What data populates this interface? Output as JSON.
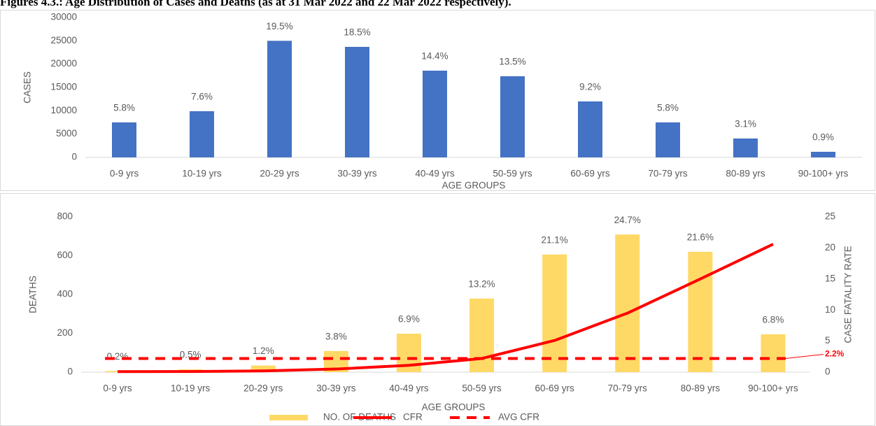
{
  "title": "Figures 4.3.: Age Distribution of Cases and Deaths (as at 31 Mar 2022 and 22 Mar 2022 respectively).",
  "chart_data": [
    {
      "type": "bar",
      "categories": [
        "0-9 yrs",
        "10-19 yrs",
        "20-29 yrs",
        "30-39 yrs",
        "40-49 yrs",
        "50-59 yrs",
        "60-69 yrs",
        "70-79 yrs",
        "80-89 yrs",
        "90-100+ yrs"
      ],
      "values": [
        7500,
        9900,
        25000,
        23700,
        18600,
        17400,
        12000,
        7500,
        4050,
        1200
      ],
      "share_labels": [
        "5.8%",
        "7.6%",
        "19.5%",
        "18.5%",
        "14.4%",
        "13.5%",
        "9.2%",
        "5.8%",
        "3.1%",
        "0.9%"
      ],
      "color": "#4472c4",
      "ylim": [
        0,
        30000
      ],
      "yticks": [
        0,
        5000,
        10000,
        15000,
        20000,
        25000,
        30000
      ],
      "y_label": "CASES",
      "x_label": "AGE GROUPS"
    },
    {
      "type": "bar_line",
      "categories": [
        "0-9 yrs",
        "10-19 yrs",
        "20-29 yrs",
        "30-39 yrs",
        "40-49 yrs",
        "50-59 yrs",
        "60-69 yrs",
        "70-79 yrs",
        "80-89 yrs",
        "90-100+ yrs"
      ],
      "series": [
        {
          "name": "NO. OF DEATHS",
          "color": "#ffd966",
          "values": [
            6,
            14,
            34,
            109,
            198,
            379,
            606,
            709,
            620,
            195
          ]
        },
        {
          "name": "CFR",
          "color": "#ff0000",
          "axis": "y2",
          "values": [
            0.08,
            0.1,
            0.2,
            0.5,
            1.1,
            2.2,
            5.1,
            9.5,
            15,
            20.6
          ]
        }
      ],
      "share_labels": [
        "0.2%",
        "0.5%",
        "1.2%",
        "3.8%",
        "6.9%",
        "13.2%",
        "21.1%",
        "24.7%",
        "21.6%",
        "6.8%"
      ],
      "avg_cfr": {
        "name": "AVG CFR",
        "value": 2.2,
        "label": "2.2%",
        "color": "#ff0000"
      },
      "ylim": [
        0,
        800
      ],
      "yticks": [
        0,
        200,
        400,
        600,
        800
      ],
      "y2lim": [
        0,
        25
      ],
      "y2ticks": [
        0,
        5,
        10,
        15,
        20,
        25
      ],
      "y_label": "DEATHS",
      "y2_label": "CASE FATALITY RATE",
      "x_label": "AGE GROUPS"
    }
  ]
}
